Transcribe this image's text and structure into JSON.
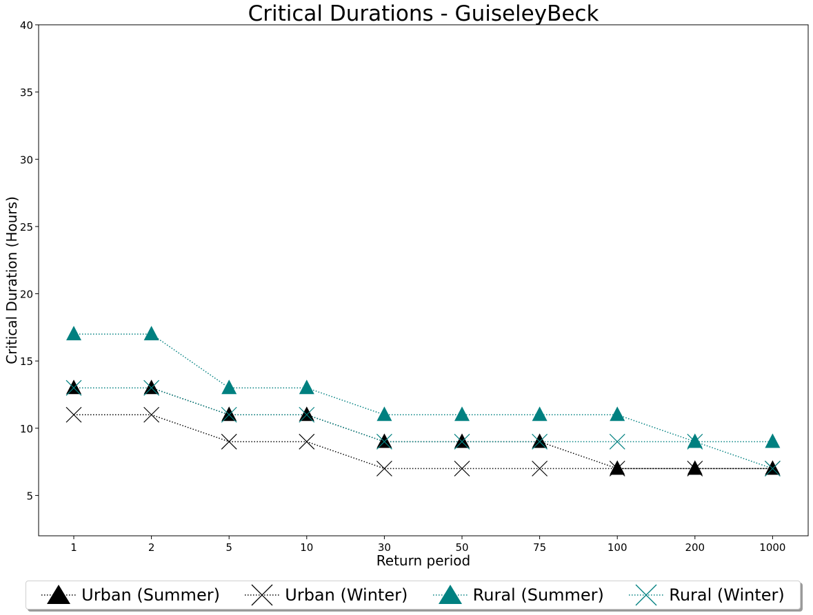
{
  "chart_data": {
    "type": "line",
    "title": "Critical Durations - GuiseleyBeck",
    "xlabel": "Return period",
    "ylabel": "Critical Duration (Hours)",
    "categories": [
      "1",
      "2",
      "5",
      "10",
      "30",
      "50",
      "75",
      "100",
      "200",
      "1000"
    ],
    "ylim": [
      2,
      40
    ],
    "yticks": [
      5,
      10,
      15,
      20,
      25,
      30,
      35,
      40
    ],
    "grid": false,
    "legend_position": "bottom",
    "series": [
      {
        "name": "Urban (Summer)",
        "color": "#000000",
        "marker": "triangle",
        "linestyle": "dotted",
        "values": [
          13,
          13,
          11,
          11,
          9,
          9,
          9,
          7,
          7,
          7
        ]
      },
      {
        "name": "Urban (Winter)",
        "color": "#000000",
        "marker": "x",
        "linestyle": "dotted",
        "values": [
          11,
          11,
          9,
          9,
          7,
          7,
          7,
          7,
          7,
          7
        ]
      },
      {
        "name": "Rural (Summer)",
        "color": "#008080",
        "marker": "triangle",
        "linestyle": "dotted",
        "values": [
          17,
          17,
          13,
          13,
          11,
          11,
          11,
          11,
          9,
          9
        ]
      },
      {
        "name": "Rural (Winter)",
        "color": "#008080",
        "marker": "x",
        "linestyle": "dotted",
        "values": [
          13,
          13,
          11,
          11,
          9,
          9,
          9,
          9,
          9,
          7
        ]
      }
    ]
  }
}
